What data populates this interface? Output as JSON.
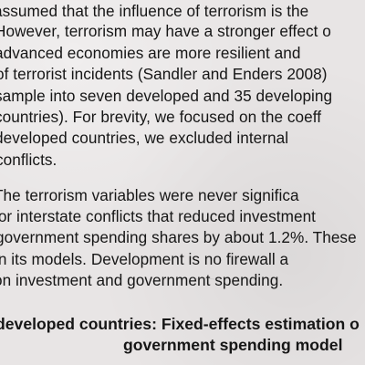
{
  "document": {
    "paragraph_1": [
      "assumed that the influence of terrorism is the",
      "However, terrorism may have a stronger effect o",
      "advanced economies are more resilient and",
      "of terrorist incidents (Sandler and Enders 2008)",
      "sample into seven developed and 35 developing",
      "countries). For brevity, we focused on the coeff",
      "developed countries, we excluded internal",
      "conflicts."
    ],
    "paragraph_2": [
      "The terrorism variables were never significa",
      "for interstate conflicts that reduced investment",
      "government spending shares by about 1.2%. These",
      "in its models. Development is no firewall a",
      "on investment and government spending."
    ],
    "table_caption": [
      "developed countries: Fixed-effects estimation o",
      "government spending model"
    ]
  }
}
